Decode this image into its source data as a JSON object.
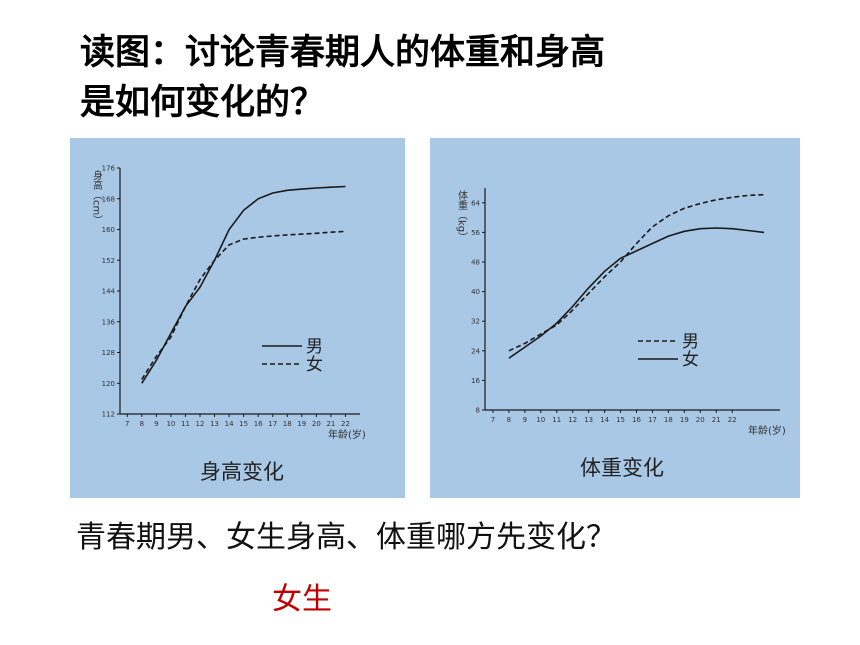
{
  "title_line1": "读图：讨论青春期人的体重和身高",
  "title_line2": "是如何变化的？",
  "question": "青春期男、女生身高、体重哪方先变化？",
  "answer": "女生",
  "colors": {
    "answer": "#c00000",
    "panel_bg": "#a9c8e6",
    "line": "#1a1a1a"
  },
  "chart_data": [
    {
      "type": "line",
      "caption": "身高变化",
      "ylabel": "身高（cm）",
      "xlabel": "年龄(岁)",
      "x": [
        7,
        8,
        9,
        10,
        11,
        12,
        13,
        14,
        15,
        16,
        17,
        18,
        19,
        20,
        21,
        22
      ],
      "x_ticks": [
        "7",
        "8",
        "9",
        "10",
        "11",
        "12",
        "13",
        "14",
        "15",
        "16",
        "17",
        "18",
        "19",
        "20",
        "21",
        "22"
      ],
      "xlim": [
        6.5,
        23
      ],
      "y_ticks": [
        "112",
        "120",
        "128",
        "136",
        "144",
        "152",
        "160",
        "168",
        "176"
      ],
      "ylim": [
        112,
        176
      ],
      "series": [
        {
          "name": "男",
          "style": "solid",
          "x": [
            8,
            9,
            10,
            11,
            12,
            13,
            14,
            15,
            16,
            17,
            18,
            19,
            20,
            21,
            22
          ],
          "values": [
            120,
            126,
            133,
            140,
            145,
            152,
            160,
            165,
            168,
            169.5,
            170.2,
            170.5,
            170.8,
            171,
            171.2
          ]
        },
        {
          "name": "女",
          "style": "dashed",
          "x": [
            8,
            9,
            10,
            11,
            12,
            13,
            14,
            15,
            16,
            17,
            18,
            19,
            20,
            21,
            22
          ],
          "values": [
            121,
            127,
            132,
            140,
            147,
            152,
            156,
            157.5,
            158,
            158.3,
            158.6,
            158.8,
            159,
            159.3,
            159.5
          ]
        }
      ]
    },
    {
      "type": "line",
      "caption": "体重变化",
      "ylabel": "体重（kg）",
      "xlabel": "年龄(岁)",
      "x": [
        7,
        8,
        9,
        10,
        11,
        12,
        13,
        14,
        15,
        16,
        17,
        18,
        19,
        20,
        21,
        22
      ],
      "x_ticks": [
        "7",
        "8",
        "9",
        "10",
        "11",
        "12",
        "13",
        "14",
        "15",
        "16",
        "17",
        "18",
        "19",
        "20",
        "21",
        "22"
      ],
      "xlim": [
        6.5,
        25
      ],
      "y_ticks": [
        "8",
        "16",
        "24",
        "32",
        "40",
        "48",
        "56",
        "64"
      ],
      "ylim": [
        8,
        68
      ],
      "series": [
        {
          "name": "男",
          "style": "dashed",
          "x": [
            8,
            9,
            10,
            11,
            12,
            13,
            14,
            15,
            16,
            17,
            18,
            19,
            20,
            21,
            22,
            23,
            24
          ],
          "values": [
            24,
            26,
            28.5,
            31,
            35,
            39.5,
            44,
            48,
            53,
            57.5,
            60.5,
            62.5,
            63.8,
            64.8,
            65.5,
            66,
            66.2
          ]
        },
        {
          "name": "女",
          "style": "solid",
          "x": [
            8,
            9,
            10,
            11,
            12,
            13,
            14,
            15,
            16,
            17,
            18,
            19,
            20,
            21,
            22,
            23,
            24
          ],
          "values": [
            22,
            25,
            28,
            31.5,
            36,
            41,
            45.5,
            49,
            51,
            53,
            55,
            56.3,
            57,
            57.2,
            57,
            56.5,
            56
          ]
        }
      ]
    }
  ]
}
